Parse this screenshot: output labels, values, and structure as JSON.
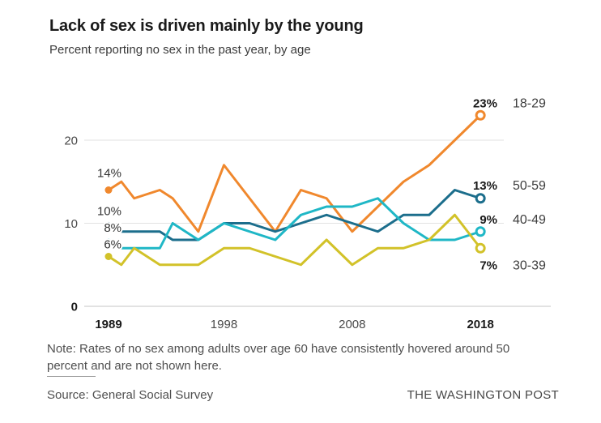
{
  "chart_data": {
    "type": "line",
    "title": "Lack of sex is driven mainly by the young",
    "subtitle": "Percent reporting no sex in the past year, by age",
    "x": [
      1989,
      1990,
      1991,
      1993,
      1994,
      1996,
      1998,
      2000,
      2002,
      2004,
      2006,
      2008,
      2010,
      2012,
      2014,
      2016,
      2018
    ],
    "series": [
      {
        "name": "18-29",
        "color": "#F0882D",
        "values": [
          14,
          15,
          13,
          14,
          13,
          9,
          17,
          13,
          9,
          14,
          13,
          9,
          12,
          15,
          17,
          20,
          23
        ],
        "start_label": "14%",
        "end_label": "23%",
        "start_marker": true
      },
      {
        "name": "50-59",
        "color": "#1C6E8C",
        "values": [
          10,
          9,
          9,
          9,
          8,
          8,
          10,
          10,
          9,
          10,
          11,
          10,
          9,
          11,
          11,
          14,
          13
        ],
        "start_label": "10%",
        "end_label": "13%",
        "start_marker": false
      },
      {
        "name": "40-49",
        "color": "#1FB7C6",
        "values": [
          8,
          7,
          7,
          7,
          10,
          8,
          10,
          9,
          8,
          11,
          12,
          12,
          13,
          10,
          8,
          8,
          9
        ],
        "start_label": "8%",
        "end_label": "9%",
        "start_marker": false
      },
      {
        "name": "30-39",
        "color": "#D2C229",
        "values": [
          6,
          5,
          7,
          5,
          5,
          5,
          7,
          7,
          6,
          5,
          8,
          5,
          7,
          7,
          8,
          11,
          7
        ],
        "start_label": "6%",
        "end_label": "7%",
        "start_marker": true
      }
    ],
    "ylim": [
      0,
      25
    ],
    "yticks": [
      {
        "label": "20",
        "value": 20,
        "bold": false
      },
      {
        "label": "10",
        "value": 10,
        "bold": false
      },
      {
        "label": "0",
        "value": 0,
        "bold": true
      }
    ],
    "xticks": [
      {
        "label": "1989",
        "year": 1989,
        "bold": true
      },
      {
        "label": "1998",
        "year": 1998,
        "bold": false
      },
      {
        "label": "2008",
        "year": 2008,
        "bold": false
      },
      {
        "label": "2018",
        "year": 2018,
        "bold": true
      }
    ],
    "grid": "horizontal-y",
    "legend_position": "labels-at-line-ends-right"
  },
  "footer": {
    "note": "Note: Rates of no sex among adults over age 60 have consistently hovered around 50 percent and are not shown here.",
    "source": "Source: General Social Survey",
    "brand": "THE WASHINGTON POST"
  }
}
